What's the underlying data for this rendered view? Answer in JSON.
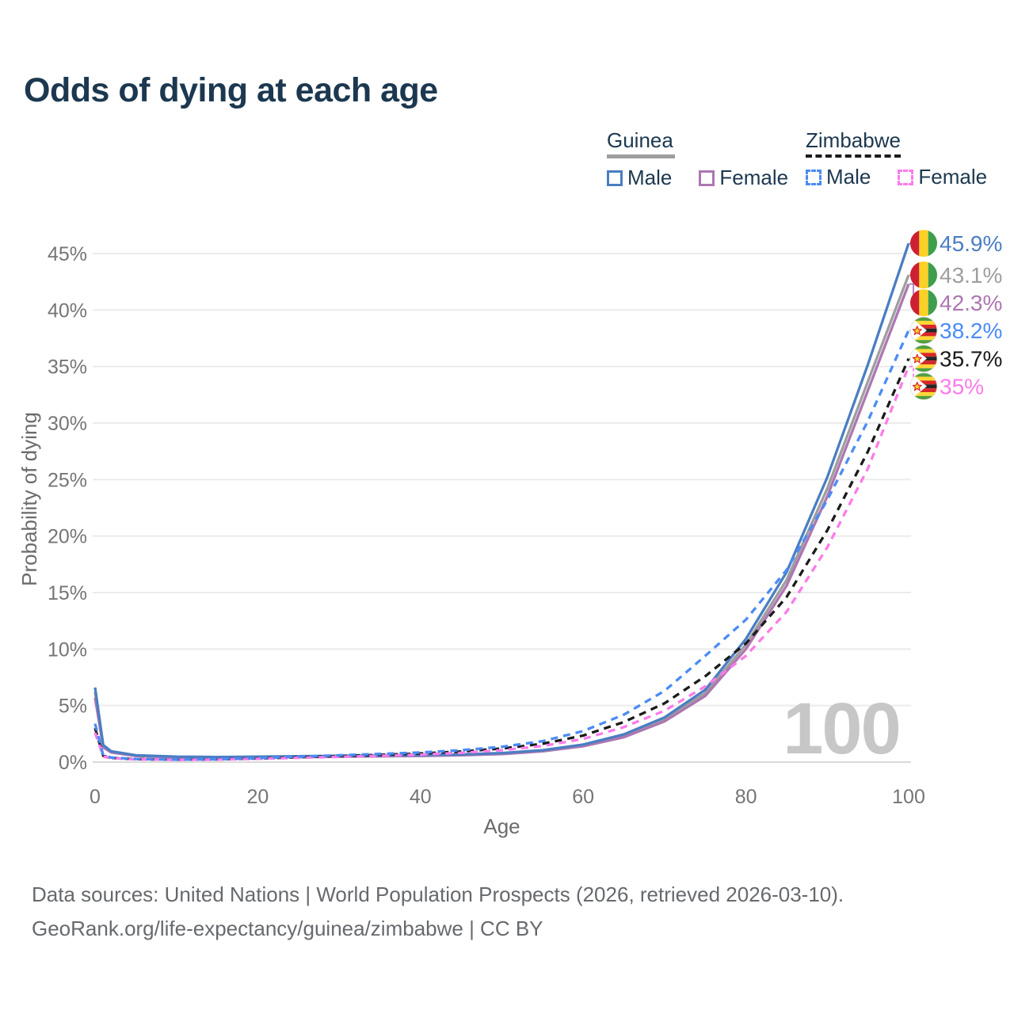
{
  "title": "Odds of dying at each age",
  "legend": {
    "groups": [
      {
        "name": "Guinea",
        "line_style": "solid",
        "swatch_color": "#9e9e9e",
        "items": [
          {
            "label": "Male",
            "color": "#4a7ec2",
            "dashed": false
          },
          {
            "label": "Female",
            "color": "#ad76b2",
            "dashed": false
          }
        ]
      },
      {
        "name": "Zimbabwe",
        "line_style": "dashed",
        "swatch_color": "#1b1b1b",
        "items": [
          {
            "label": "Male",
            "color": "#4b8bf5",
            "dashed": true
          },
          {
            "label": "Female",
            "color": "#fb7bea",
            "dashed": true
          }
        ]
      }
    ]
  },
  "watermark": "100",
  "footer": {
    "line1": "Data sources: United Nations | World Population Prospects (2026, retrieved 2026-03-10).",
    "line2": "GeoRank.org/life-expectancy/guinea/zimbabwe | CC BY"
  },
  "chart_data": {
    "type": "line",
    "title": "Odds of dying at each age",
    "xlabel": "Age",
    "ylabel": "Probability of dying",
    "xlim": [
      0,
      100
    ],
    "ylim_pct": [
      0,
      45
    ],
    "x_ticks": [
      0,
      20,
      40,
      60,
      80,
      100
    ],
    "y_tick_labels": [
      "0%",
      "5%",
      "10%",
      "15%",
      "20%",
      "25%",
      "30%",
      "35%",
      "40%",
      "45%"
    ],
    "grid": "horizontal",
    "legend_position": "top-right",
    "x": [
      0,
      1,
      2,
      5,
      10,
      15,
      20,
      25,
      30,
      35,
      40,
      45,
      50,
      55,
      60,
      65,
      70,
      75,
      80,
      85,
      90,
      95,
      100
    ],
    "series": [
      {
        "key": "guinea-male",
        "name": "Guinea Male",
        "country": "Guinea",
        "sex": "Male",
        "color": "#4a7ec2",
        "dashed": false,
        "flag": "guinea",
        "end_label": "45.9%",
        "end_value": 45.9,
        "values": [
          6.6,
          1.5,
          0.95,
          0.6,
          0.48,
          0.45,
          0.48,
          0.52,
          0.55,
          0.58,
          0.62,
          0.68,
          0.8,
          1.05,
          1.55,
          2.45,
          3.95,
          6.4,
          10.9,
          16.8,
          25.2,
          35.2,
          45.9
        ]
      },
      {
        "key": "guinea-both",
        "name": "Guinea",
        "country": "Guinea",
        "sex": "Both",
        "color": "#9e9e9e",
        "dashed": false,
        "flag": "guinea",
        "end_label": "43.1%",
        "end_value": 43.1,
        "values": [
          6.2,
          1.4,
          0.9,
          0.57,
          0.45,
          0.42,
          0.45,
          0.48,
          0.51,
          0.54,
          0.58,
          0.64,
          0.75,
          1.0,
          1.47,
          2.32,
          3.75,
          6.1,
          10.4,
          16.1,
          24.2,
          33.7,
          43.1
        ]
      },
      {
        "key": "guinea-female",
        "name": "Guinea Female",
        "country": "Guinea",
        "sex": "Female",
        "color": "#ad76b2",
        "dashed": false,
        "flag": "guinea",
        "end_label": "42.3%",
        "end_value": 42.3,
        "values": [
          5.7,
          1.3,
          0.85,
          0.54,
          0.42,
          0.4,
          0.42,
          0.45,
          0.48,
          0.51,
          0.55,
          0.6,
          0.71,
          0.95,
          1.4,
          2.2,
          3.6,
          5.85,
          10.0,
          15.6,
          23.5,
          32.9,
          42.3
        ]
      },
      {
        "key": "zimbabwe-male",
        "name": "Zimbabwe Male",
        "country": "Zimbabwe",
        "sex": "Male",
        "color": "#4b8bf5",
        "dashed": true,
        "flag": "zimbabwe",
        "end_label": "38.2%",
        "end_value": 38.2,
        "values": [
          3.4,
          0.6,
          0.4,
          0.28,
          0.22,
          0.25,
          0.35,
          0.48,
          0.6,
          0.72,
          0.85,
          1.05,
          1.35,
          1.85,
          2.75,
          4.2,
          6.3,
          9.4,
          12.6,
          17.0,
          23.2,
          30.2,
          38.2
        ]
      },
      {
        "key": "zimbabwe-both",
        "name": "Zimbabwe",
        "country": "Zimbabwe",
        "sex": "Both",
        "color": "#1b1b1b",
        "dashed": true,
        "flag": "zimbabwe",
        "end_label": "35.7%",
        "end_value": 35.7,
        "values": [
          3.0,
          0.55,
          0.37,
          0.26,
          0.21,
          0.24,
          0.32,
          0.43,
          0.54,
          0.64,
          0.76,
          0.94,
          1.2,
          1.62,
          2.35,
          3.55,
          5.2,
          7.6,
          10.5,
          14.6,
          20.5,
          27.5,
          35.7
        ]
      },
      {
        "key": "zimbabwe-female",
        "name": "Zimbabwe Female",
        "country": "Zimbabwe",
        "sex": "Female",
        "color": "#fb7bea",
        "dashed": true,
        "flag": "zimbabwe",
        "end_label": "35%",
        "end_value": 35.0,
        "values": [
          2.6,
          0.5,
          0.34,
          0.24,
          0.2,
          0.22,
          0.29,
          0.38,
          0.47,
          0.56,
          0.66,
          0.82,
          1.05,
          1.42,
          2.05,
          3.1,
          4.55,
          6.7,
          9.4,
          13.3,
          19.0,
          26.0,
          35.0
        ]
      }
    ]
  }
}
